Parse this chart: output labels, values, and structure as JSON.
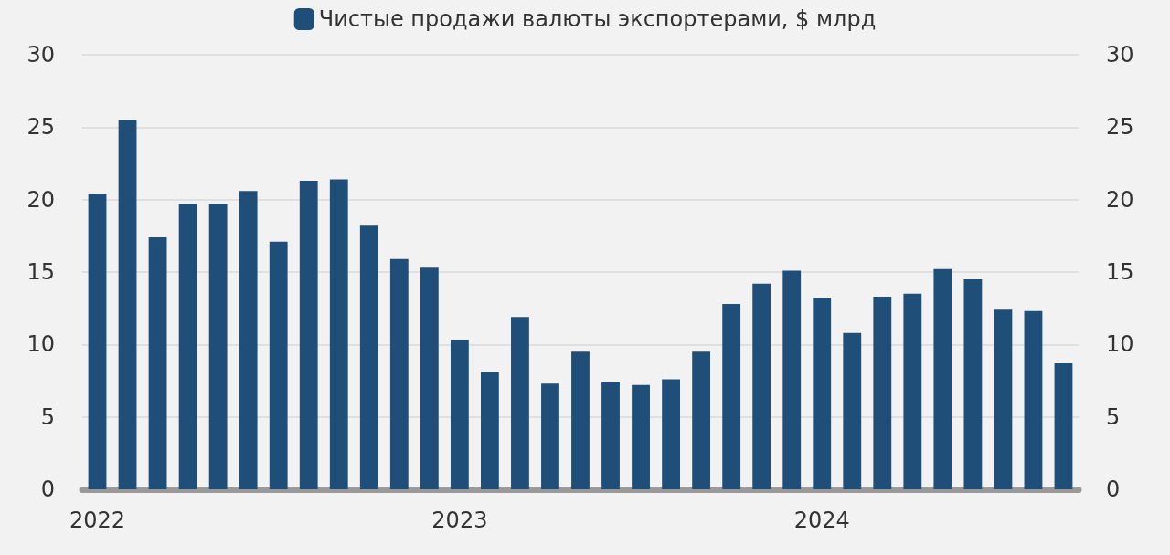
{
  "chart_data": {
    "type": "bar",
    "categories": [
      "2022",
      null,
      null,
      null,
      null,
      null,
      null,
      null,
      null,
      null,
      null,
      null,
      "2023",
      null,
      null,
      null,
      null,
      null,
      null,
      null,
      null,
      null,
      null,
      null,
      "2024",
      null,
      null,
      null,
      null,
      null,
      null,
      null,
      null
    ],
    "series": [
      {
        "name": "Чистые продажи валюты экспортерами, $ млрд",
        "color": "#1f4e79",
        "values": [
          20.4,
          25.5,
          17.4,
          19.7,
          19.7,
          20.6,
          17.1,
          21.3,
          21.4,
          18.2,
          15.9,
          15.3,
          10.3,
          8.1,
          11.9,
          7.3,
          9.5,
          7.4,
          7.2,
          7.6,
          9.5,
          12.8,
          14.2,
          15.1,
          13.2,
          10.8,
          13.3,
          13.5,
          15.2,
          14.5,
          12.4,
          12.3,
          8.7
        ]
      }
    ],
    "ylim": [
      0,
      30
    ],
    "yticks": [
      0,
      5,
      10,
      15,
      20,
      25,
      30
    ],
    "y2lim": [
      0,
      30
    ],
    "y2ticks": [
      0,
      5,
      10,
      15,
      20,
      25,
      30
    ],
    "grid": "y",
    "legend": "top"
  }
}
